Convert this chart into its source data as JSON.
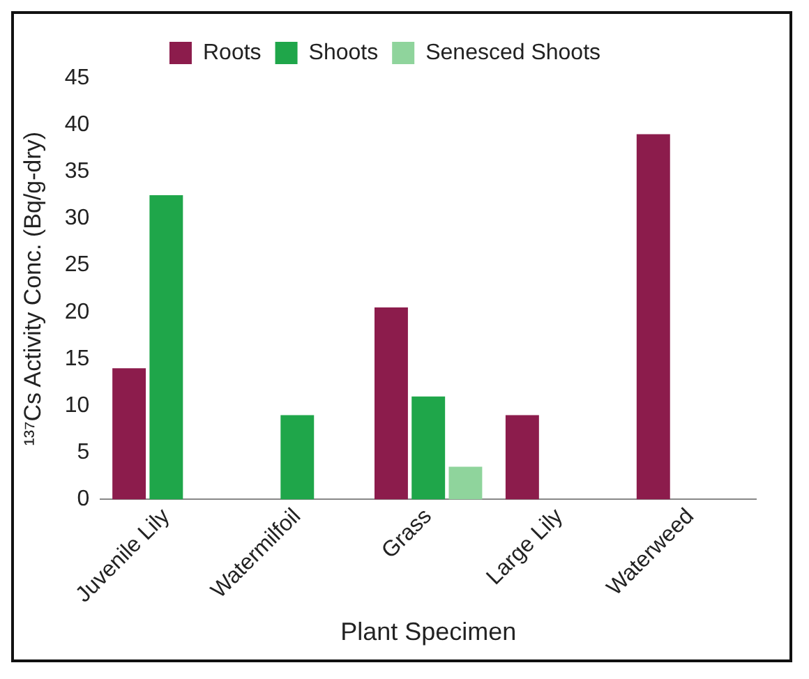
{
  "chart_data": {
    "type": "bar",
    "xlabel": "Plant Specimen",
    "ylabel": "¹³⁷Cs Activity Conc. (Bq/g-dry)",
    "categories": [
      "Juvenile Lily",
      "Watermilfoil",
      "Grass",
      "Large Lily",
      "Waterweed"
    ],
    "series": [
      {
        "name": "Roots",
        "color": "#8c1c4c",
        "values": [
          14,
          null,
          20.5,
          9,
          39
        ]
      },
      {
        "name": "Shoots",
        "color": "#1fa64a",
        "values": [
          32.5,
          9,
          11,
          null,
          null
        ]
      },
      {
        "name": "Senesced Shoots",
        "color": "#8fd49c",
        "values": [
          null,
          null,
          3.5,
          null,
          null
        ]
      }
    ],
    "ylim": [
      0,
      45
    ],
    "yticks": [
      0,
      5,
      10,
      15,
      20,
      25,
      30,
      35,
      40,
      45
    ],
    "grid": false,
    "legend": "top"
  }
}
